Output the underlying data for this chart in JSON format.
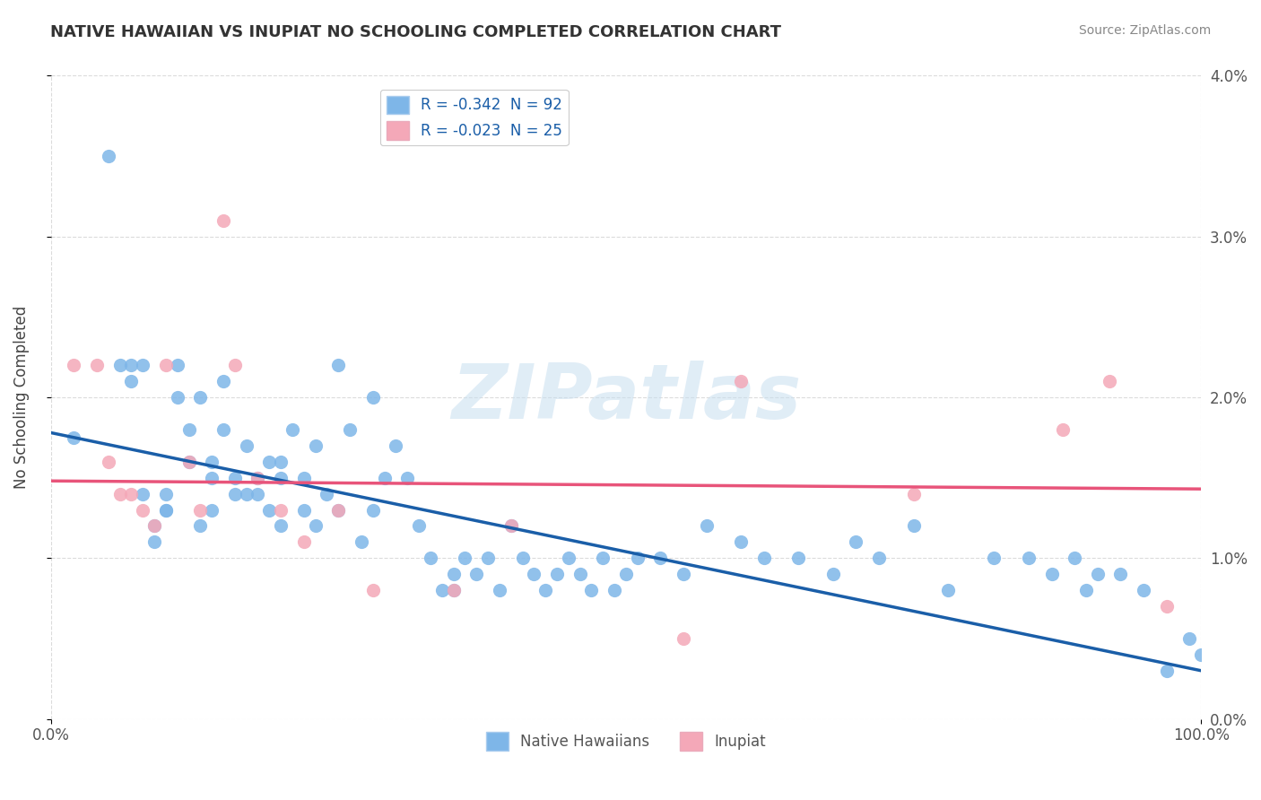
{
  "title": "NATIVE HAWAIIAN VS INUPIAT NO SCHOOLING COMPLETED CORRELATION CHART",
  "source_text": "Source: ZipAtlas.com",
  "ylabel": "No Schooling Completed",
  "xlim": [
    0,
    1.0
  ],
  "ylim": [
    0,
    0.04
  ],
  "ytick_vals": [
    0.0,
    0.01,
    0.02,
    0.03,
    0.04
  ],
  "ytick_labels": [
    "0.0%",
    "1.0%",
    "2.0%",
    "3.0%",
    "4.0%"
  ],
  "legend_label1": "R = -0.342  N = 92",
  "legend_label2": "R = -0.023  N = 25",
  "color_blue": "#7EB6E8",
  "color_pink": "#F4A8B8",
  "line_color_blue": "#1A5EA8",
  "line_color_pink": "#E8547A",
  "watermark": "ZIPatlas",
  "legend_bottom_label1": "Native Hawaiians",
  "legend_bottom_label2": "Inupiat",
  "blue_scatter_x": [
    0.02,
    0.05,
    0.06,
    0.07,
    0.07,
    0.08,
    0.08,
    0.09,
    0.09,
    0.1,
    0.1,
    0.1,
    0.11,
    0.11,
    0.12,
    0.12,
    0.13,
    0.13,
    0.14,
    0.14,
    0.14,
    0.15,
    0.15,
    0.16,
    0.16,
    0.17,
    0.17,
    0.18,
    0.18,
    0.19,
    0.19,
    0.2,
    0.2,
    0.2,
    0.21,
    0.22,
    0.22,
    0.23,
    0.23,
    0.24,
    0.25,
    0.25,
    0.26,
    0.27,
    0.28,
    0.28,
    0.29,
    0.3,
    0.31,
    0.32,
    0.33,
    0.34,
    0.35,
    0.35,
    0.36,
    0.37,
    0.38,
    0.39,
    0.4,
    0.41,
    0.42,
    0.43,
    0.44,
    0.45,
    0.46,
    0.47,
    0.48,
    0.49,
    0.5,
    0.51,
    0.53,
    0.55,
    0.57,
    0.6,
    0.62,
    0.65,
    0.68,
    0.7,
    0.72,
    0.75,
    0.78,
    0.82,
    0.85,
    0.87,
    0.89,
    0.9,
    0.91,
    0.93,
    0.95,
    0.97,
    0.99,
    1.0
  ],
  "blue_scatter_y": [
    0.0175,
    0.035,
    0.022,
    0.022,
    0.021,
    0.022,
    0.014,
    0.012,
    0.011,
    0.014,
    0.013,
    0.013,
    0.022,
    0.02,
    0.018,
    0.016,
    0.02,
    0.012,
    0.016,
    0.015,
    0.013,
    0.021,
    0.018,
    0.015,
    0.014,
    0.017,
    0.014,
    0.015,
    0.014,
    0.016,
    0.013,
    0.016,
    0.015,
    0.012,
    0.018,
    0.015,
    0.013,
    0.017,
    0.012,
    0.014,
    0.022,
    0.013,
    0.018,
    0.011,
    0.02,
    0.013,
    0.015,
    0.017,
    0.015,
    0.012,
    0.01,
    0.008,
    0.009,
    0.008,
    0.01,
    0.009,
    0.01,
    0.008,
    0.012,
    0.01,
    0.009,
    0.008,
    0.009,
    0.01,
    0.009,
    0.008,
    0.01,
    0.008,
    0.009,
    0.01,
    0.01,
    0.009,
    0.012,
    0.011,
    0.01,
    0.01,
    0.009,
    0.011,
    0.01,
    0.012,
    0.008,
    0.01,
    0.01,
    0.009,
    0.01,
    0.008,
    0.009,
    0.009,
    0.008,
    0.003,
    0.005,
    0.004
  ],
  "pink_scatter_x": [
    0.02,
    0.04,
    0.05,
    0.06,
    0.07,
    0.08,
    0.09,
    0.1,
    0.12,
    0.13,
    0.15,
    0.16,
    0.18,
    0.2,
    0.22,
    0.25,
    0.28,
    0.35,
    0.4,
    0.55,
    0.6,
    0.75,
    0.88,
    0.92,
    0.97
  ],
  "pink_scatter_y": [
    0.022,
    0.022,
    0.016,
    0.014,
    0.014,
    0.013,
    0.012,
    0.022,
    0.016,
    0.013,
    0.031,
    0.022,
    0.015,
    0.013,
    0.011,
    0.013,
    0.008,
    0.008,
    0.012,
    0.005,
    0.021,
    0.014,
    0.018,
    0.021,
    0.007
  ],
  "blue_line_x": [
    0.0,
    1.0
  ],
  "blue_line_y_start": 0.0178,
  "blue_line_y_end": 0.003,
  "pink_line_x": [
    0.0,
    1.0
  ],
  "pink_line_y_start": 0.0148,
  "pink_line_y_end": 0.0143
}
